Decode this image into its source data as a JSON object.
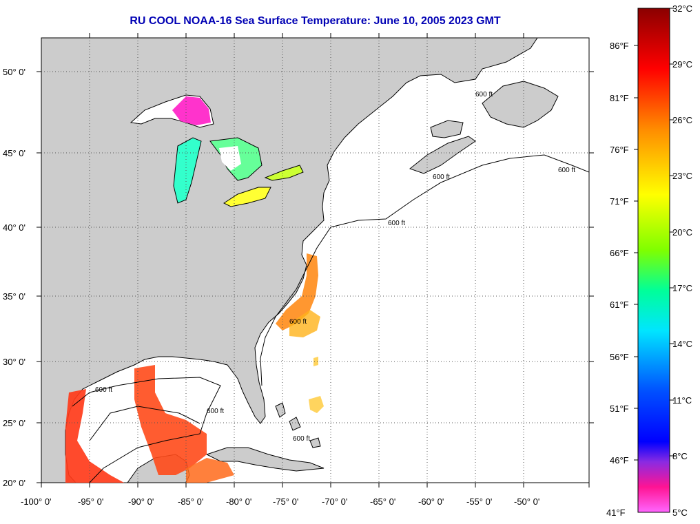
{
  "title": "RU COOL  NOAA-16  Sea Surface Temperature:  June 10, 2005 2023 GMT",
  "map": {
    "lon_ticks": [
      "-100° 0'",
      "-95° 0'",
      "-90° 0'",
      "-85° 0'",
      "-80° 0'",
      "-75° 0'",
      "-70° 0'",
      "-65° 0'",
      "-60° 0'",
      "-55° 0'",
      "-50° 0'"
    ],
    "lat_ticks": [
      "20° 0'",
      "25° 0'",
      "30° 0'",
      "35° 0'",
      "40° 0'",
      "45° 0'",
      "50° 0'"
    ],
    "isobath_labels": [
      "600 ft",
      "600 ft",
      "600 ft",
      "600 ft",
      "600 ft",
      "600 ft",
      "600 ft",
      "600 ft"
    ],
    "colors": {
      "land": "#cccccc",
      "ocean": "#ffffff",
      "grid": "#555555"
    }
  },
  "colorbar": {
    "celsius_labels": [
      "32°C",
      "29°C",
      "26°C",
      "23°C",
      "20°C",
      "17°C",
      "14°C",
      "11°C",
      "8°C",
      "5°C"
    ],
    "fahrenheit_labels": [
      "86°F",
      "81°F",
      "76°F",
      "71°F",
      "66°F",
      "61°F",
      "56°F",
      "51°F",
      "46°F",
      "41°F"
    ],
    "gradient": [
      "#8b0000",
      "#ff0000",
      "#ff8c00",
      "#ffff00",
      "#7fff00",
      "#00e5ff",
      "#00a0ff",
      "#0000ff",
      "#8a2be2",
      "#ff1493",
      "#ff66ff"
    ]
  }
}
